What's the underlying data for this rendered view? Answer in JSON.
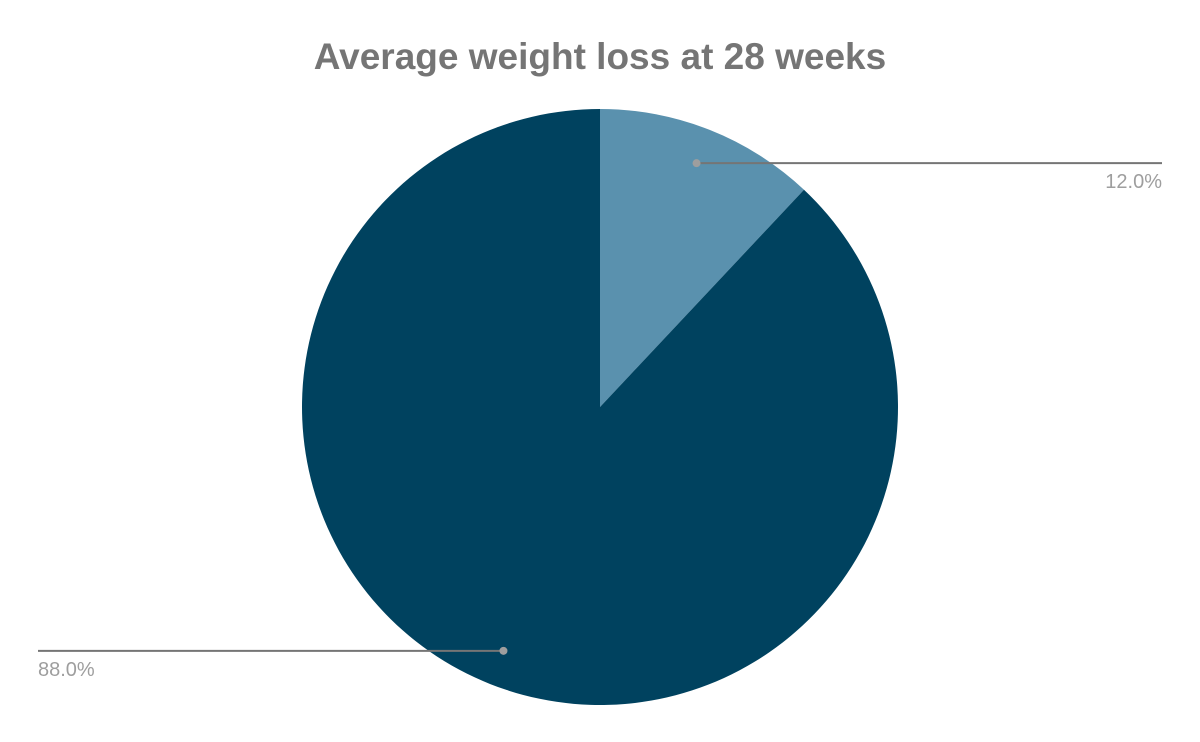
{
  "chart_data": {
    "type": "pie",
    "title": "Average weight loss at 28 weeks",
    "slices": [
      {
        "value": 12.0,
        "label": "12.0%",
        "color": "#5a91ae"
      },
      {
        "value": 88.0,
        "label": "88.0%",
        "color": "#00425f"
      }
    ],
    "start_angle_deg": 0,
    "direction": "clockwise",
    "legend": "none"
  }
}
